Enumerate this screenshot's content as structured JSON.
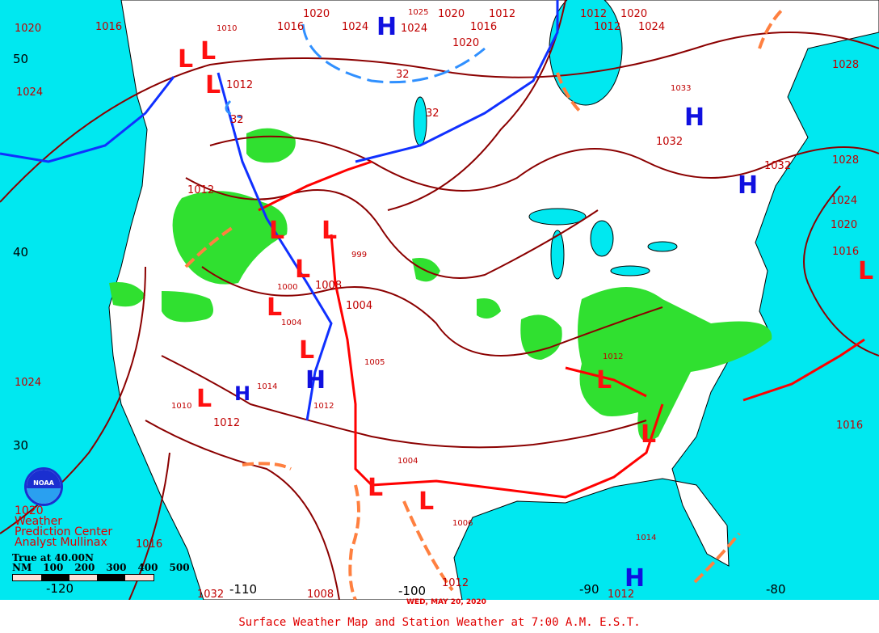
{
  "title": "Surface Weather Map and Station Weather at 7:00 A.M. E.S.T.",
  "date": "WED, MAY 20, 2020",
  "credit": {
    "line0": "1020",
    "line1": "Weather",
    "line2": "Prediction Center",
    "line3": "Analyst Mullinax"
  },
  "logo_text": "NOAA",
  "scale": {
    "true_at": "True at 40.00N",
    "units": "NM",
    "ticks": [
      "100",
      "200",
      "300",
      "400",
      "500"
    ]
  },
  "latitudes": [
    "50",
    "40",
    "30"
  ],
  "longitudes": [
    "-120",
    "-110",
    "-100",
    "-90",
    "-80"
  ],
  "pressure_labels": [
    "1020",
    "1016",
    "1024",
    "1020",
    "1016",
    "1012",
    "1010",
    "1012",
    "1016",
    "1020",
    "1024",
    "1020",
    "1012",
    "1012",
    "1020",
    "1024",
    "1028",
    "1033",
    "1032",
    "1032",
    "1028",
    "1024",
    "1020",
    "1016",
    "1024",
    "1016",
    "1012",
    "1008",
    "1012",
    "1004",
    "1008",
    "1000",
    "1004",
    "1005",
    "1012",
    "1014",
    "1010",
    "1012",
    "1014",
    "1016",
    "1004",
    "1006",
    "1012",
    "1032",
    "32",
    "32",
    "32",
    "1024",
    "1025",
    "999",
    "1012",
    "1008",
    "1016"
  ],
  "centers": {
    "H": [
      "H",
      "H",
      "H",
      "H",
      "H",
      "H"
    ],
    "L": [
      "L",
      "L",
      "L",
      "L",
      "L",
      "L",
      "L",
      "L",
      "L",
      "L",
      "L",
      "L",
      "L",
      "L"
    ]
  },
  "colors": {
    "water": "#00e8f0",
    "land": "#ffffff",
    "isobar": "#8b0000",
    "cold_front": "#1030ff",
    "warm_front": "#ff0000",
    "trough": "#ff8040",
    "precip": "#30e030",
    "text": "#e00000"
  }
}
